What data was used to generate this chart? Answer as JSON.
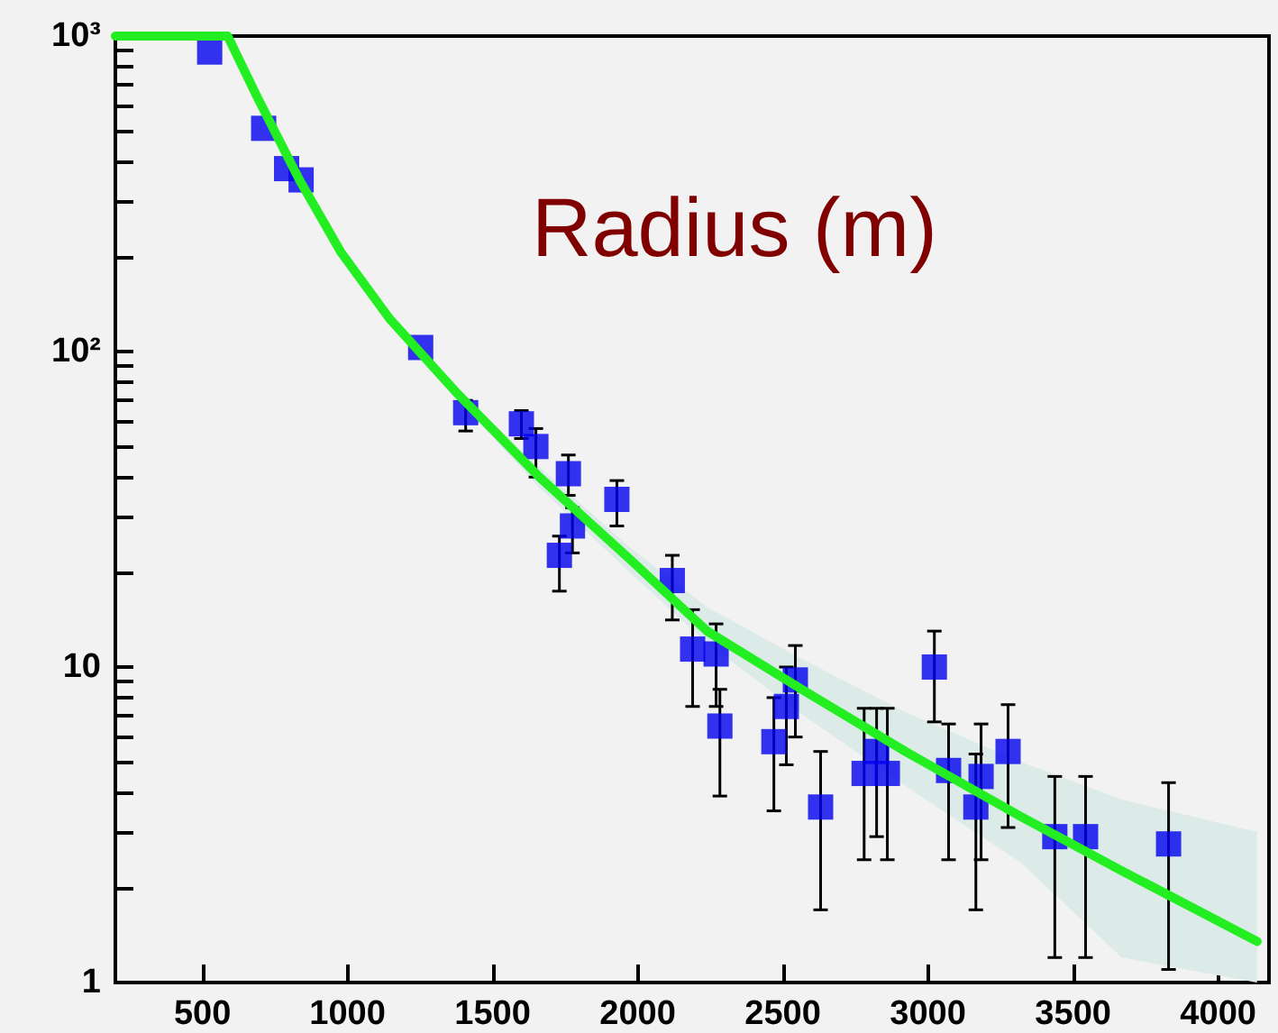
{
  "chart_data": {
    "type": "scatter",
    "title": "Radius (m)",
    "log": "y",
    "grid": false,
    "xlim": [
      200,
      4175
    ],
    "xticks": [
      500,
      1000,
      1500,
      2000,
      2500,
      3000,
      3500,
      4000
    ],
    "ylim": [
      1,
      1000
    ],
    "yticks": [
      1,
      {
        "value": 2,
        "label": null
      },
      {
        "value": 3,
        "label": null
      },
      {
        "value": 4,
        "label": null
      },
      {
        "value": 5,
        "label": null
      },
      {
        "value": 6,
        "label": null
      },
      {
        "value": 7,
        "label": null
      },
      {
        "value": 8,
        "label": null
      },
      {
        "value": 9,
        "label": null
      },
      10,
      {
        "value": 20,
        "label": null
      },
      {
        "value": 30,
        "label": null
      },
      {
        "value": 40,
        "label": null
      },
      {
        "value": 50,
        "label": null
      },
      {
        "value": 60,
        "label": null
      },
      {
        "value": 70,
        "label": null
      },
      {
        "value": 80,
        "label": null
      },
      {
        "value": 90,
        "label": null
      },
      {
        "value": 100,
        "label": "10²"
      },
      {
        "value": 200,
        "label": null
      },
      {
        "value": 300,
        "label": null
      },
      {
        "value": 400,
        "label": null
      },
      {
        "value": 500,
        "label": null
      },
      {
        "value": 600,
        "label": null
      },
      {
        "value": 700,
        "label": null
      },
      {
        "value": 800,
        "label": null
      },
      {
        "value": 900,
        "label": null
      },
      {
        "value": 1000,
        "label": "10³"
      }
    ],
    "series": [
      {
        "color": "#0000ee",
        "marker": "square",
        "x": [
          525,
          711,
          790,
          840,
          1252,
          1407,
          1599,
          1649,
          1761,
          1928,
          1775,
          1730,
          2119,
          2189,
          2270,
          2283,
          2469,
          2512,
          2543,
          2630,
          2780,
          2823,
          2860,
          3022,
          3071,
          3165,
          3183,
          3276,
          3437,
          3543,
          3829
        ],
        "values": [
          890,
          510,
          380,
          350,
          103,
          64,
          59,
          50,
          41,
          34,
          28,
          22.6,
          18.8,
          11.4,
          11,
          6.5,
          5.8,
          7.5,
          9.1,
          3.6,
          4.6,
          5.4,
          4.6,
          10,
          4.7,
          3.6,
          4.5,
          5.4,
          2.9,
          2.9,
          2.75
        ],
        "errors": [
          null,
          null,
          null,
          null,
          null,
          [
            56,
            70
          ],
          [
            53,
            65
          ],
          [
            40,
            57
          ],
          [
            35,
            47
          ],
          [
            28,
            39
          ],
          [
            23,
            32
          ],
          [
            17.4,
            26
          ],
          [
            14.1,
            22.6
          ],
          [
            7.5,
            15.2
          ],
          [
            7.5,
            13.7
          ],
          [
            3.9,
            8.5
          ],
          [
            3.5,
            8
          ],
          [
            4.9,
            10
          ],
          [
            6,
            11.7
          ],
          [
            1.7,
            5.4
          ],
          [
            2.45,
            7.4
          ],
          [
            2.9,
            7.4
          ],
          [
            2.45,
            7.4
          ],
          [
            6.7,
            13
          ],
          [
            2.45,
            6.6
          ],
          [
            1.7,
            5.3
          ],
          [
            2.45,
            6.6
          ],
          [
            3.1,
            7.6
          ],
          [
            1.2,
            4.5
          ],
          [
            1.2,
            4.5
          ],
          [
            1.1,
            4.3
          ]
        ]
      },
      {
        "type": "line",
        "color": "#22ee22",
        "marker": "none",
        "x": [
          200,
          562,
          587,
          686,
          835,
          978,
          1145,
          1370,
          1661,
          1972,
          2239,
          2574,
          2922,
          3320,
          3668,
          4134
        ],
        "values": [
          1000,
          1000,
          1000,
          648,
          349,
          206,
          127,
          75,
          40,
          22,
          13,
          8.4,
          5.4,
          3.36,
          2.26,
          1.35
        ],
        "lower": [
          null,
          null,
          null,
          null,
          null,
          null,
          127,
          72,
          37,
          20,
          11.9,
          7,
          4.2,
          2.4,
          1.2,
          1
        ],
        "upper": [
          null,
          null,
          null,
          null,
          null,
          null,
          127,
          77,
          43,
          24,
          15.5,
          10.5,
          7.2,
          5,
          3.8,
          3
        ]
      }
    ]
  }
}
